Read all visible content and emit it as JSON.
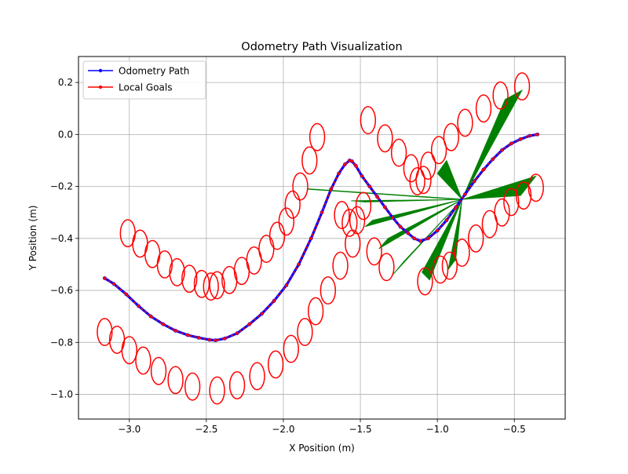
{
  "chart_data": {
    "type": "line",
    "title": "Odometry Path Visualization",
    "xlabel": "X Position (m)",
    "ylabel": "Y Position (m)",
    "xlim": [
      -3.33,
      -0.17
    ],
    "ylim": [
      -1.095,
      0.3
    ],
    "xticks": [
      -3.0,
      -2.5,
      -2.0,
      -1.5,
      -1.0,
      -0.5
    ],
    "xtick_labels": [
      "−3.0",
      "−2.5",
      "−2.0",
      "−1.5",
      "−1.0",
      "−0.5"
    ],
    "yticks": [
      0.2,
      0.0,
      -0.2,
      -0.4,
      -0.6,
      -0.8,
      -1.0
    ],
    "ytick_labels": [
      "0.2",
      "0.0",
      "−0.2",
      "−0.4",
      "−0.6",
      "−0.8",
      "−1.0"
    ],
    "grid": true,
    "legend_position": "top-left",
    "colors": {
      "odometry": "#0000ff",
      "goals": "#ff0000",
      "ellipses": "#ff0000",
      "rays": "#008000",
      "grid": "#b0b0b0"
    },
    "series": [
      {
        "name": "Odometry Path",
        "marker": "dot",
        "x": [
          -3.16,
          -3.1,
          -3.02,
          -2.94,
          -2.86,
          -2.78,
          -2.7,
          -2.62,
          -2.55,
          -2.48,
          -2.44,
          -2.38,
          -2.3,
          -2.22,
          -2.14,
          -2.06,
          -1.98,
          -1.9,
          -1.82,
          -1.75,
          -1.69,
          -1.64,
          -1.6,
          -1.57,
          -1.555,
          -1.53,
          -1.49,
          -1.44,
          -1.39,
          -1.34,
          -1.29,
          -1.24,
          -1.19,
          -1.15,
          -1.11,
          -1.06,
          -1.0,
          -0.94,
          -0.88,
          -0.82,
          -0.76,
          -0.7,
          -0.64,
          -0.58,
          -0.52,
          -0.46,
          -0.4,
          -0.35
        ],
        "y": [
          -0.553,
          -0.575,
          -0.615,
          -0.66,
          -0.7,
          -0.73,
          -0.755,
          -0.772,
          -0.782,
          -0.79,
          -0.792,
          -0.785,
          -0.765,
          -0.73,
          -0.69,
          -0.64,
          -0.58,
          -0.5,
          -0.4,
          -0.3,
          -0.21,
          -0.15,
          -0.115,
          -0.1,
          -0.103,
          -0.12,
          -0.16,
          -0.2,
          -0.24,
          -0.28,
          -0.32,
          -0.355,
          -0.38,
          -0.4,
          -0.41,
          -0.4,
          -0.37,
          -0.33,
          -0.28,
          -0.23,
          -0.18,
          -0.135,
          -0.095,
          -0.06,
          -0.035,
          -0.018,
          -0.005,
          0.0
        ]
      },
      {
        "name": "Local Goals",
        "marker": "dot",
        "x": [
          -3.16,
          -3.1,
          -3.02,
          -2.94,
          -2.86,
          -2.78,
          -2.7,
          -2.62,
          -2.55,
          -2.48,
          -2.44,
          -2.38,
          -2.3,
          -2.22,
          -2.14,
          -2.06,
          -1.98,
          -1.9,
          -1.82,
          -1.75,
          -1.69,
          -1.64,
          -1.6,
          -1.57,
          -1.555,
          -1.53,
          -1.49,
          -1.44,
          -1.39,
          -1.34,
          -1.29,
          -1.24,
          -1.19,
          -1.15,
          -1.11,
          -1.06,
          -1.0,
          -0.94,
          -0.88,
          -0.82,
          -0.76,
          -0.7,
          -0.64,
          -0.58,
          -0.52,
          -0.46,
          -0.4,
          -0.35
        ],
        "y": [
          -0.553,
          -0.575,
          -0.615,
          -0.66,
          -0.7,
          -0.73,
          -0.755,
          -0.772,
          -0.782,
          -0.79,
          -0.792,
          -0.785,
          -0.765,
          -0.73,
          -0.69,
          -0.64,
          -0.58,
          -0.5,
          -0.4,
          -0.3,
          -0.21,
          -0.15,
          -0.115,
          -0.1,
          -0.103,
          -0.12,
          -0.16,
          -0.2,
          -0.24,
          -0.28,
          -0.32,
          -0.355,
          -0.38,
          -0.4,
          -0.41,
          -0.4,
          -0.37,
          -0.33,
          -0.28,
          -0.23,
          -0.18,
          -0.135,
          -0.095,
          -0.06,
          -0.035,
          -0.018,
          -0.005,
          0.0
        ]
      }
    ],
    "ellipses": {
      "rx": 0.048,
      "ry": 0.052,
      "centers": [
        [
          -3.01,
          -0.38
        ],
        [
          -2.93,
          -0.42
        ],
        [
          -2.85,
          -0.46
        ],
        [
          -2.77,
          -0.5
        ],
        [
          -2.69,
          -0.53
        ],
        [
          -2.61,
          -0.555
        ],
        [
          -2.53,
          -0.575
        ],
        [
          -2.47,
          -0.585
        ],
        [
          -2.43,
          -0.58
        ],
        [
          -2.35,
          -0.56
        ],
        [
          -2.27,
          -0.525
        ],
        [
          -2.19,
          -0.485
        ],
        [
          -2.11,
          -0.44
        ],
        [
          -2.04,
          -0.39
        ],
        [
          -1.98,
          -0.335
        ],
        [
          -1.94,
          -0.27
        ],
        [
          -1.89,
          -0.2
        ],
        [
          -1.83,
          -0.1
        ],
        [
          -1.78,
          -0.01
        ],
        [
          -3.16,
          -0.76
        ],
        [
          -3.08,
          -0.79
        ],
        [
          -3.0,
          -0.83
        ],
        [
          -2.91,
          -0.87
        ],
        [
          -2.81,
          -0.91
        ],
        [
          -2.7,
          -0.945
        ],
        [
          -2.59,
          -0.97
        ],
        [
          -2.43,
          -0.985
        ],
        [
          -2.3,
          -0.965
        ],
        [
          -2.17,
          -0.93
        ],
        [
          -2.05,
          -0.885
        ],
        [
          -1.95,
          -0.825
        ],
        [
          -1.86,
          -0.76
        ],
        [
          -1.79,
          -0.68
        ],
        [
          -1.71,
          -0.6
        ],
        [
          -1.63,
          -0.505
        ],
        [
          -1.62,
          -0.31
        ],
        [
          -1.57,
          -0.34
        ],
        [
          -1.55,
          -0.42
        ],
        [
          -1.52,
          -0.33
        ],
        [
          -1.48,
          -0.275
        ],
        [
          -1.45,
          0.055
        ],
        [
          -1.41,
          -0.45
        ],
        [
          -1.34,
          -0.015
        ],
        [
          -1.33,
          -0.51
        ],
        [
          -1.25,
          -0.07
        ],
        [
          -1.17,
          -0.13
        ],
        [
          -1.13,
          -0.18
        ],
        [
          -1.09,
          -0.175
        ],
        [
          -1.06,
          -0.12
        ],
        [
          -0.99,
          -0.06
        ],
        [
          -0.91,
          -0.01
        ],
        [
          -0.82,
          0.045
        ],
        [
          -0.7,
          0.1
        ],
        [
          -0.59,
          0.15
        ],
        [
          -0.45,
          0.185
        ],
        [
          -1.08,
          -0.565
        ],
        [
          -0.98,
          -0.52
        ],
        [
          -0.92,
          -0.505
        ],
        [
          -0.84,
          -0.455
        ],
        [
          -0.75,
          -0.4
        ],
        [
          -0.66,
          -0.345
        ],
        [
          -0.58,
          -0.3
        ],
        [
          -0.52,
          -0.26
        ],
        [
          -0.44,
          -0.235
        ],
        [
          -0.36,
          -0.205
        ]
      ]
    },
    "rays": {
      "origin": [
        -0.84,
        -0.25
      ],
      "line_end": [
        -1.84,
        -0.21
      ],
      "fans": [
        [
          [
            -1.56,
            -0.255
          ],
          [
            -1.47,
            -0.26
          ]
        ],
        [
          [
            -1.47,
            -0.355
          ],
          [
            -1.42,
            -0.33
          ]
        ],
        [
          [
            -1.38,
            -0.44
          ],
          [
            -1.32,
            -0.4
          ]
        ],
        [
          [
            -1.29,
            -0.54
          ],
          [
            -1.22,
            -0.49
          ]
        ],
        [
          [
            -1.1,
            -0.53
          ],
          [
            -1.05,
            -0.56
          ]
        ],
        [
          [
            -0.93,
            -0.52
          ],
          [
            -0.88,
            -0.48
          ]
        ],
        [
          [
            -1.0,
            -0.15
          ],
          [
            -0.94,
            -0.1
          ]
        ],
        [
          [
            -0.56,
            0.135
          ],
          [
            -0.45,
            0.17
          ]
        ],
        [
          [
            -0.46,
            -0.235
          ],
          [
            -0.36,
            -0.16
          ]
        ]
      ]
    }
  }
}
